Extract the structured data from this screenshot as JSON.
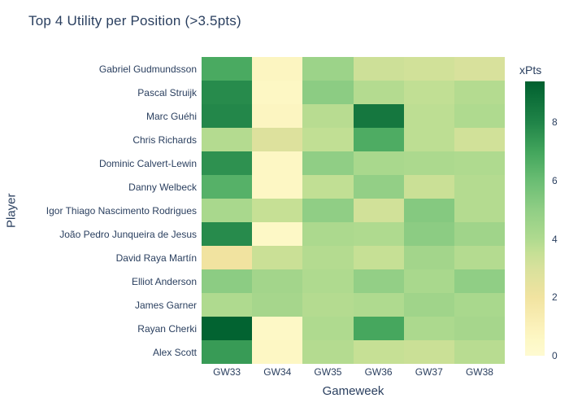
{
  "colors": {
    "text": "#2a3f5f",
    "background": "#ffffff"
  },
  "chart_data": {
    "type": "heatmap",
    "title": "Top 4 Utility per Position (>3.5pts)",
    "xlabel": "Gameweek",
    "ylabel": "Player",
    "x": [
      "GW33",
      "GW34",
      "GW35",
      "GW36",
      "GW37",
      "GW38"
    ],
    "y": [
      "Gabriel Gudmundsson",
      "Pascal Struijk",
      "Marc Guéhi",
      "Chris Richards",
      "Dominic Calvert-Lewin",
      "Danny Welbeck",
      "Igor Thiago Nascimento Rodrigues",
      "João Pedro Junqueira de Jesus",
      "David Raya Martín",
      "Elliot Anderson",
      "James Garner",
      "Rayan Cherki",
      "Alex Scott"
    ],
    "values": [
      [
        6.8,
        0.7,
        4.6,
        3.3,
        3.2,
        3.0
      ],
      [
        7.8,
        0.6,
        5.1,
        3.9,
        3.6,
        3.9
      ],
      [
        7.9,
        0.7,
        3.8,
        8.5,
        3.7,
        4.0
      ],
      [
        3.9,
        2.8,
        3.6,
        6.7,
        3.7,
        3.2
      ],
      [
        7.6,
        0.6,
        5.0,
        4.2,
        4.1,
        4.0
      ],
      [
        6.5,
        0.6,
        3.6,
        4.9,
        3.4,
        3.9
      ],
      [
        4.2,
        3.5,
        5.0,
        3.2,
        5.3,
        3.9
      ],
      [
        7.8,
        0.5,
        4.1,
        4.0,
        5.1,
        4.5
      ],
      [
        2.0,
        3.4,
        3.9,
        3.5,
        4.4,
        3.9
      ],
      [
        5.1,
        4.4,
        4.0,
        4.9,
        4.2,
        5.0
      ],
      [
        4.0,
        4.3,
        3.9,
        4.0,
        4.5,
        4.2
      ],
      [
        9.3,
        0.5,
        4.0,
        6.9,
        4.1,
        4.3
      ],
      [
        7.3,
        0.6,
        3.9,
        3.5,
        3.4,
        3.8
      ]
    ],
    "zmin": 0,
    "zmax": 9.4,
    "grid": false,
    "legend_position": "right-colorbar",
    "colorbar": {
      "title": "xPts",
      "ticks": [
        0,
        2,
        4,
        6,
        8
      ]
    },
    "colorscale": [
      {
        "value": 0.0,
        "color": "#fefad1"
      },
      {
        "value": 0.5,
        "color": "#fdf8c6"
      },
      {
        "value": 1.0,
        "color": "#fbf1ba"
      },
      {
        "value": 2.0,
        "color": "#f1e3a0"
      },
      {
        "value": 3.0,
        "color": "#d8e19c"
      },
      {
        "value": 3.5,
        "color": "#c6e095"
      },
      {
        "value": 4.0,
        "color": "#afda8f"
      },
      {
        "value": 5.0,
        "color": "#90ce85"
      },
      {
        "value": 6.0,
        "color": "#6abd73"
      },
      {
        "value": 7.0,
        "color": "#42a55c"
      },
      {
        "value": 8.0,
        "color": "#208448"
      },
      {
        "value": 9.4,
        "color": "#00602f"
      }
    ]
  }
}
